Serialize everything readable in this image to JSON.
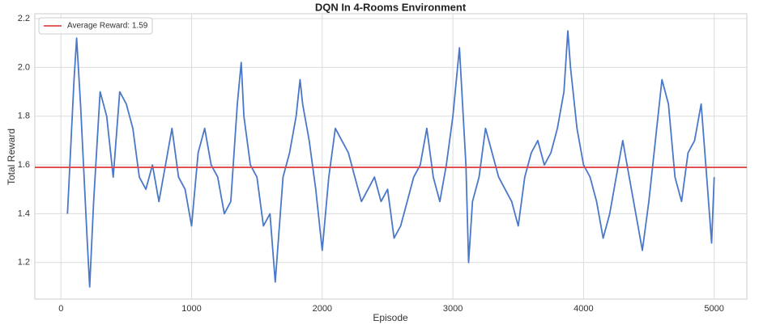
{
  "chart_data": {
    "type": "line",
    "title": "DQN In 4-Rooms Environment",
    "x_label": "Episode",
    "y_label": "Total Reward",
    "x": [
      50,
      100,
      120,
      150,
      200,
      220,
      250,
      300,
      350,
      400,
      450,
      500,
      550,
      600,
      650,
      700,
      750,
      800,
      850,
      900,
      950,
      1000,
      1050,
      1100,
      1150,
      1200,
      1250,
      1300,
      1350,
      1380,
      1400,
      1450,
      1500,
      1550,
      1600,
      1640,
      1700,
      1750,
      1800,
      1830,
      1850,
      1900,
      1950,
      2000,
      2050,
      2100,
      2150,
      2200,
      2250,
      2300,
      2350,
      2400,
      2450,
      2500,
      2550,
      2600,
      2650,
      2700,
      2750,
      2800,
      2850,
      2900,
      2950,
      3000,
      3050,
      3100,
      3120,
      3150,
      3200,
      3250,
      3300,
      3350,
      3400,
      3450,
      3500,
      3550,
      3600,
      3650,
      3700,
      3750,
      3800,
      3850,
      3880,
      3900,
      3950,
      4000,
      4050,
      4100,
      4150,
      4200,
      4250,
      4300,
      4350,
      4400,
      4450,
      4500,
      4550,
      4600,
      4650,
      4700,
      4750,
      4800,
      4850,
      4900,
      4950,
      4980,
      5000
    ],
    "series": [
      {
        "name": "Total Reward",
        "color": "#4a78c8",
        "values": [
          1.4,
          1.95,
          2.12,
          1.85,
          1.3,
          1.1,
          1.45,
          1.9,
          1.8,
          1.55,
          1.9,
          1.85,
          1.75,
          1.55,
          1.5,
          1.6,
          1.45,
          1.6,
          1.75,
          1.55,
          1.5,
          1.35,
          1.65,
          1.75,
          1.6,
          1.55,
          1.4,
          1.45,
          1.85,
          2.02,
          1.8,
          1.6,
          1.55,
          1.35,
          1.4,
          1.12,
          1.55,
          1.65,
          1.8,
          1.95,
          1.85,
          1.7,
          1.5,
          1.25,
          1.55,
          1.75,
          1.7,
          1.65,
          1.55,
          1.45,
          1.5,
          1.55,
          1.45,
          1.5,
          1.3,
          1.35,
          1.45,
          1.55,
          1.6,
          1.75,
          1.55,
          1.45,
          1.6,
          1.8,
          2.08,
          1.6,
          1.2,
          1.45,
          1.55,
          1.75,
          1.65,
          1.55,
          1.5,
          1.45,
          1.35,
          1.55,
          1.65,
          1.7,
          1.6,
          1.65,
          1.75,
          1.9,
          2.15,
          2.0,
          1.75,
          1.6,
          1.55,
          1.45,
          1.3,
          1.4,
          1.55,
          1.7,
          1.55,
          1.4,
          1.25,
          1.45,
          1.7,
          1.95,
          1.85,
          1.55,
          1.45,
          1.65,
          1.7,
          1.85,
          1.5,
          1.28,
          1.55
        ]
      }
    ],
    "average_line": {
      "name": "Average Reward: 1.59",
      "value": 1.59,
      "color": "#e04848"
    },
    "xlim": [
      -200,
      5250
    ],
    "ylim": [
      1.05,
      2.22
    ],
    "xticks": [
      0,
      1000,
      2000,
      3000,
      4000,
      5000
    ],
    "yticks": [
      1.2,
      1.4,
      1.6,
      1.8,
      {
        "value": 2,
        "label": "2.0"
      },
      2.2
    ],
    "grid": true,
    "legend": "upper-left"
  }
}
